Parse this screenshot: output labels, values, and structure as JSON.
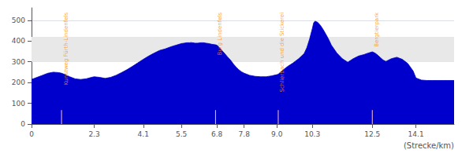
{
  "chart_data": {
    "type": "area",
    "xlabel": "(Strecke/km)",
    "color": "#0000CC",
    "x": [
      0.0,
      0.2,
      0.4,
      0.6,
      0.8,
      1.0,
      1.1,
      1.2,
      1.4,
      1.6,
      1.8,
      2.0,
      2.2,
      2.3,
      2.5,
      2.7,
      2.9,
      3.1,
      3.3,
      3.5,
      3.7,
      3.9,
      4.1,
      4.3,
      4.5,
      4.7,
      4.9,
      5.1,
      5.3,
      5.5,
      5.6,
      5.7,
      5.8,
      5.85,
      5.9,
      6.0,
      6.1,
      6.2,
      6.3,
      6.4,
      6.5,
      6.6,
      6.7,
      6.75,
      6.8,
      6.9,
      7.0,
      7.1,
      7.2,
      7.3,
      7.4,
      7.5,
      7.6,
      7.7,
      7.8,
      8.0,
      8.2,
      8.4,
      8.6,
      8.8,
      9.0,
      9.05,
      9.2,
      9.4,
      9.6,
      9.8,
      10.0,
      10.1,
      10.2,
      10.3,
      10.35,
      10.4,
      10.5,
      10.6,
      10.7,
      10.8,
      10.9,
      11.0,
      11.2,
      11.4,
      11.6,
      11.8,
      12.0,
      12.2,
      12.3,
      12.5,
      12.6,
      12.7,
      12.8,
      12.9,
      13.0,
      13.2,
      13.4,
      13.6,
      13.8,
      14.0,
      14.1,
      14.3,
      14.5,
      14.7,
      14.9,
      15.1,
      15.3,
      15.5
    ],
    "values": [
      215,
      225,
      235,
      245,
      250,
      248,
      245,
      240,
      228,
      218,
      215,
      218,
      225,
      228,
      225,
      220,
      225,
      235,
      248,
      262,
      278,
      295,
      312,
      328,
      342,
      355,
      362,
      372,
      380,
      388,
      390,
      392,
      392,
      393,
      392,
      390,
      390,
      392,
      392,
      390,
      388,
      385,
      383,
      382,
      380,
      368,
      352,
      338,
      322,
      308,
      290,
      275,
      262,
      252,
      245,
      235,
      230,
      228,
      228,
      232,
      238,
      240,
      258,
      278,
      295,
      315,
      340,
      368,
      410,
      460,
      488,
      496,
      490,
      475,
      455,
      432,
      408,
      380,
      342,
      315,
      298,
      315,
      328,
      335,
      340,
      348,
      342,
      332,
      320,
      308,
      302,
      315,
      322,
      312,
      292,
      255,
      222,
      212,
      210,
      210,
      210,
      210,
      210,
      210
    ],
    "xlim": [
      0,
      15.5
    ],
    "ylim": [
      0,
      560
    ],
    "xticks": [
      0,
      2.3,
      4.1,
      5.5,
      6.8,
      7.8,
      {
        "value": 9.0,
        "label": "9.0"
      },
      10.3,
      12.5,
      14.1
    ],
    "yticks": [
      0,
      100,
      200,
      300,
      400,
      500
    ],
    "grid": true,
    "band": {
      "from": 300,
      "to": 420,
      "color": "#e8e8e8"
    },
    "annotations": [
      {
        "x": 1.1,
        "label": "Kunstweg Fürth-Lindenfels",
        "color": "#FF8C00"
      },
      {
        "x": 6.75,
        "label": "Burg Lindenfels",
        "color": "#FF8C00"
      },
      {
        "x": 9.05,
        "label": "Schlierbach und die Stickerei",
        "color": "#FF8C00"
      },
      {
        "x": 12.5,
        "label": "Bergtierpark",
        "color": "#FF8C00"
      }
    ]
  }
}
